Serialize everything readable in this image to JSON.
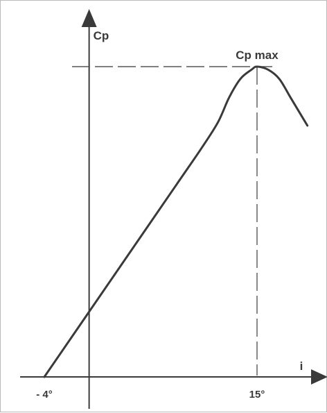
{
  "chart_data": {
    "type": "line",
    "title": "",
    "xlabel": "i",
    "ylabel": "Cp",
    "xlim": [
      -4,
      21
    ],
    "ylim": [
      0,
      1.12
    ],
    "grid": false,
    "x_tick_labels": [
      {
        "value": -4,
        "text": "- 4°"
      },
      {
        "value": 15,
        "text": "15°"
      }
    ],
    "annotations": [
      {
        "text": "Cp max",
        "x": 15,
        "y": 1.0
      }
    ],
    "reference_lines": [
      {
        "orientation": "horizontal",
        "value": 1.0,
        "style": "dashed"
      },
      {
        "orientation": "vertical",
        "value": 15,
        "style": "dashed"
      }
    ],
    "series": [
      {
        "x": [
          -4,
          0,
          4,
          8,
          10,
          11.5,
          12.5,
          13.5,
          14.5,
          15,
          16,
          17,
          18,
          19.5
        ],
        "y": [
          0,
          0.21,
          0.42,
          0.63,
          0.735,
          0.82,
          0.9,
          0.96,
          0.99,
          1.0,
          0.99,
          0.96,
          0.9,
          0.81
        ]
      }
    ],
    "colors": {
      "line": "#3a3a3a",
      "axis": "#3a3a3a",
      "dash": "#555555"
    }
  }
}
